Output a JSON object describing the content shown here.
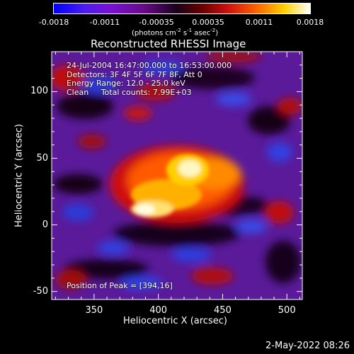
{
  "colorbar": {
    "ticks": [
      "-0.0018",
      "-0.0011",
      "-0.00035",
      "0.00035",
      "0.0011",
      "0.0018"
    ],
    "units_text": "(photons cm",
    "units_exp1": "-2",
    "units_mid": " s",
    "units_exp2": "-1",
    "units_end": " asec",
    "units_exp3": "-2",
    "units_close": ")"
  },
  "chart_data": {
    "type": "heatmap",
    "title": "Reconstructed RHESSI Image",
    "xlabel": "Heliocentric X (arcsec)",
    "ylabel": "Heliocentric Y (arcsec)",
    "xlim": [
      317,
      512
    ],
    "ylim": [
      -56,
      130
    ],
    "x_ticks": [
      350,
      400,
      450,
      500
    ],
    "y_ticks": [
      -50,
      0,
      50,
      100
    ],
    "color_range": [
      -0.0018,
      0.0018
    ],
    "colormap": "rainbow-to-hot (blue, purple, red, orange, yellow, white)",
    "peak_position": [
      394,
      16
    ],
    "info_lines": [
      "24-Jul-2004 16:47:00.000 to 16:53:00.000",
      "Detectors: 3F 4F 5F 6F 7F 8F, Att 0",
      "Energy Range: 12.0 - 25.0 keV",
      "Clean     Total counts: 7.99E+03"
    ],
    "peak_label": "Position of Peak = [394,16]"
  },
  "footer": {
    "date": "2-May-2022 08:26"
  }
}
